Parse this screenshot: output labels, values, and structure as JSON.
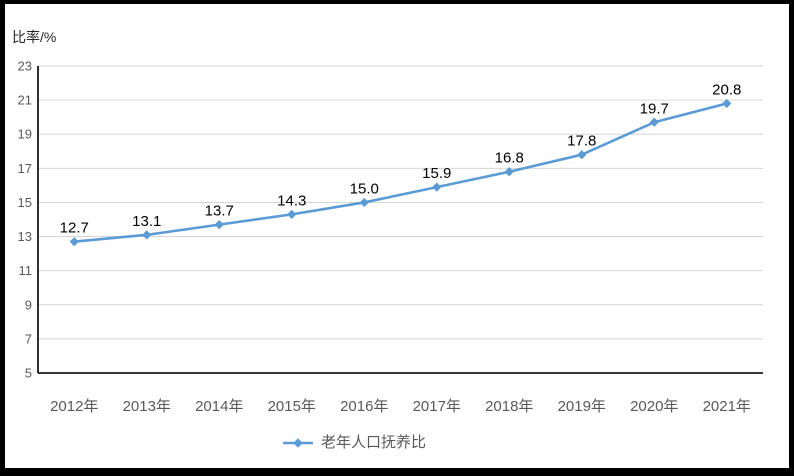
{
  "frame": {
    "background": "#ffffff",
    "border_color": "#000000"
  },
  "chart_data": {
    "type": "line",
    "y_axis_title": "比率/%",
    "categories": [
      "2012年",
      "2013年",
      "2014年",
      "2015年",
      "2016年",
      "2017年",
      "2018年",
      "2019年",
      "2020年",
      "2021年"
    ],
    "series": [
      {
        "name": "老年人口抚养比",
        "values": [
          12.7,
          13.1,
          13.7,
          14.3,
          15.0,
          15.9,
          16.8,
          17.8,
          19.7,
          20.8
        ]
      }
    ],
    "data_labels": [
      "12.7",
      "13.1",
      "13.7",
      "14.3",
      "15.0",
      "15.9",
      "16.8",
      "17.8",
      "19.7",
      "20.8"
    ],
    "ylim": [
      5,
      23
    ],
    "y_ticks": [
      5,
      7,
      9,
      11,
      13,
      15,
      17,
      19,
      21,
      23
    ],
    "grid": true,
    "legend_position": "bottom",
    "colors": {
      "line": "#5B9BD5",
      "marker": "#5B9BD5",
      "grid": "#D6D6D6",
      "axis": "#1A1A1A",
      "tick_label": "#595959",
      "category_label": "#595959",
      "data_label": "#000000",
      "legend_label": "#595959"
    }
  }
}
